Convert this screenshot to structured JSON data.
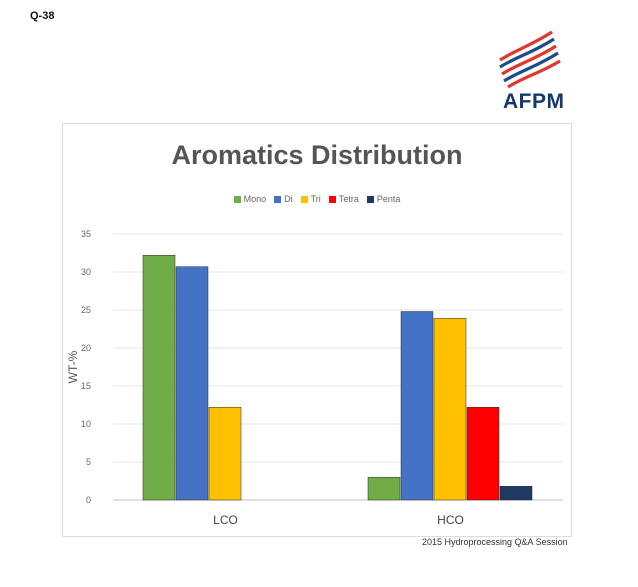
{
  "slide": {
    "label": "Q-38",
    "footer": "2015 Hydroprocessing Q&A Session"
  },
  "logo": {
    "text": "AFPM",
    "icon": "afpm-flag-logo",
    "colors": {
      "red": "#e0382e",
      "blue": "#1d4d86"
    }
  },
  "chart_data": {
    "type": "bar",
    "title": "Aromatics Distribution",
    "xlabel": "",
    "ylabel": "WT-%",
    "categories": [
      "LCO",
      "HCO"
    ],
    "series": [
      {
        "name": "Mono",
        "color": "#70ad47",
        "values": [
          32.2,
          3.0
        ]
      },
      {
        "name": "Di",
        "color": "#4472c4",
        "values": [
          30.7,
          24.8
        ]
      },
      {
        "name": "Tri",
        "color": "#ffc000",
        "values": [
          12.2,
          23.9
        ]
      },
      {
        "name": "Tetra",
        "color": "#ff0000",
        "values": [
          0,
          12.2
        ]
      },
      {
        "name": "Penta",
        "color": "#1f3864",
        "values": [
          0,
          1.8
        ]
      }
    ],
    "ylim": [
      0,
      35
    ],
    "yticks": [
      0,
      5,
      10,
      15,
      20,
      25,
      30,
      35
    ],
    "grid": true,
    "legend_position": "top"
  }
}
